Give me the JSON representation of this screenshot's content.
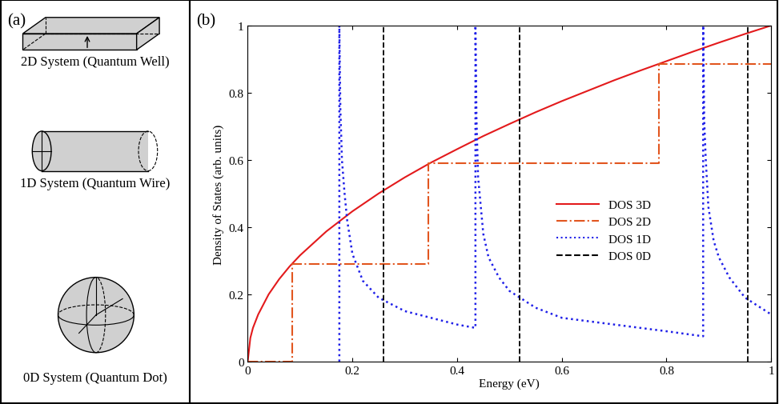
{
  "diagram": {
    "panel_label": "(a)",
    "items": [
      {
        "label": "2D System (Quantum Well)"
      },
      {
        "label": "1D System (Quantum Wire)"
      },
      {
        "label": "0D System (Quantum Dot)"
      }
    ]
  },
  "chart_data": {
    "type": "line",
    "panel_label": "(b)",
    "x_label": "Energy (eV)",
    "y_label": "Density of States (arb. units)",
    "xlim": [
      0,
      1
    ],
    "ylim": [
      0,
      1
    ],
    "xticks": [
      0,
      0.2,
      0.4,
      0.6,
      0.8,
      1
    ],
    "yticks": [
      0,
      0.2,
      0.4,
      0.6,
      0.8,
      1
    ],
    "legend": "center",
    "series": [
      {
        "name": "DOS 3D",
        "color": "#e31a1c",
        "line_style": "solid",
        "x": [
          0,
          0.005,
          0.01,
          0.02,
          0.04,
          0.06,
          0.08,
          0.1,
          0.15,
          0.2,
          0.25,
          0.3,
          0.35,
          0.4,
          0.45,
          0.5,
          0.55,
          0.6,
          0.65,
          0.7,
          0.75,
          0.8,
          0.85,
          0.9,
          0.95,
          1.0
        ],
        "values": [
          0,
          0.07,
          0.1,
          0.14,
          0.2,
          0.245,
          0.283,
          0.316,
          0.387,
          0.447,
          0.5,
          0.548,
          0.592,
          0.632,
          0.671,
          0.707,
          0.742,
          0.775,
          0.806,
          0.837,
          0.866,
          0.894,
          0.922,
          0.949,
          0.975,
          1.0
        ]
      },
      {
        "name": "DOS 2D",
        "color": "#e2561f",
        "line_style": "dashdot",
        "x": [
          0,
          0.085,
          0.085,
          0.345,
          0.345,
          0.785,
          0.785,
          1.0
        ],
        "values": [
          0,
          0,
          0.29,
          0.29,
          0.59,
          0.59,
          0.885,
          0.885
        ]
      },
      {
        "name": "DOS 1D",
        "color": "#2020e8",
        "line_style": "dotted",
        "x": [
          0.175,
          0.175,
          0.177,
          0.18,
          0.185,
          0.19,
          0.2,
          0.22,
          0.25,
          0.3,
          0.35,
          0.4,
          0.435,
          0.435,
          0.437,
          0.44,
          0.45,
          0.46,
          0.48,
          0.5,
          0.55,
          0.6,
          0.7,
          0.8,
          0.87,
          0.87,
          0.872,
          0.875,
          0.88,
          0.89,
          0.9,
          0.92,
          0.95,
          1.0
        ],
        "values": [
          0,
          1.0,
          0.75,
          0.6,
          0.5,
          0.42,
          0.32,
          0.24,
          0.19,
          0.15,
          0.13,
          0.11,
          0.1,
          1.0,
          0.72,
          0.55,
          0.38,
          0.31,
          0.25,
          0.21,
          0.16,
          0.13,
          0.11,
          0.09,
          0.075,
          1.0,
          0.72,
          0.6,
          0.46,
          0.36,
          0.31,
          0.25,
          0.19,
          0.14
        ]
      },
      {
        "name": "DOS 0D",
        "color": "#000000",
        "line_style": "dashed",
        "type": "vline",
        "x": [
          0.26,
          0.52,
          0.955
        ],
        "values": [
          1,
          1,
          1
        ]
      }
    ]
  }
}
